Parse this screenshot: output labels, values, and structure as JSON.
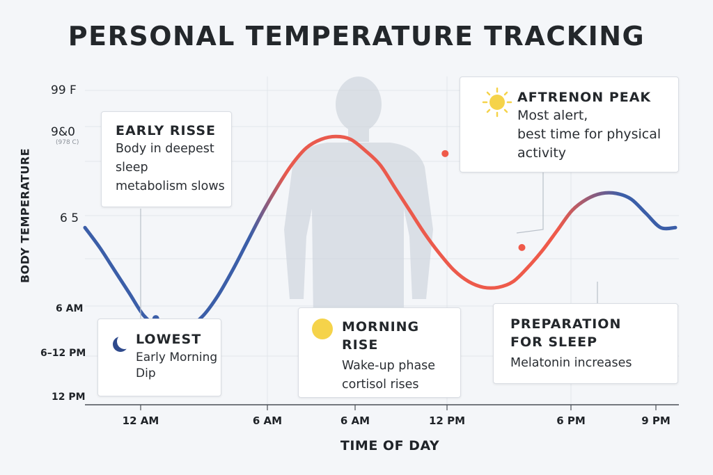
{
  "title": "PERSONAL TEMPERATURE TRACKING",
  "chart_data": {
    "type": "line",
    "title": "PERSONAL TEMPERATURE TRACKING",
    "xlabel": "TIME OF DAY",
    "ylabel": "BODY TEMPERATURE",
    "x_ticks": [
      "12 AM",
      "6 AM",
      "6 AM",
      "12 PM",
      "6 PM",
      "9 PM"
    ],
    "y_ticks": [
      {
        "label": "99 F",
        "sub": ""
      },
      {
        "label": "9&0",
        "sub": "(978 C)"
      },
      {
        "label": "6 5",
        "sub": ""
      },
      {
        "label": "6 AM",
        "sub": ""
      },
      {
        "label": "6–12 PM",
        "sub": ""
      },
      {
        "label": "12 PM",
        "sub": ""
      }
    ],
    "grid": true,
    "series": [
      {
        "x": [
          0,
          0.25,
          0.5,
          0.75,
          1.0,
          1.25,
          1.5,
          1.75,
          2.0,
          2.25,
          2.5,
          2.75,
          3.0,
          3.25,
          3.5,
          3.75,
          4.0,
          4.25,
          4.5,
          4.75,
          5.0,
          5.25,
          5.5,
          5.75,
          6.0,
          6.25,
          6.5,
          6.75,
          7.0,
          7.25,
          7.5,
          7.75,
          8.0,
          8.25,
          8.5,
          8.75,
          9.0,
          9.25,
          9.5,
          9.75,
          10.0
        ],
        "y": [
          0.52,
          0.45,
          0.37,
          0.29,
          0.21,
          0.17,
          0.16,
          0.17,
          0.21,
          0.28,
          0.37,
          0.47,
          0.57,
          0.66,
          0.74,
          0.8,
          0.83,
          0.84,
          0.83,
          0.79,
          0.74,
          0.66,
          0.58,
          0.5,
          0.43,
          0.37,
          0.33,
          0.31,
          0.31,
          0.33,
          0.38,
          0.44,
          0.51,
          0.58,
          0.62,
          0.64,
          0.64,
          0.62,
          0.57,
          0.52,
          0.52
        ]
      }
    ],
    "markers": [
      {
        "x": 1.2,
        "y": 0.2
      },
      {
        "x": 6.1,
        "y": 0.78
      },
      {
        "x": 7.4,
        "y": 0.45
      }
    ],
    "colors": {
      "cool": "#3b5ea8",
      "warm": "#ef5a4a"
    }
  },
  "annotations": [
    {
      "title": "EARLY RISSE",
      "lines": [
        "Body in deepest",
        "sleep",
        "metabolism slows"
      ]
    },
    {
      "title": "LOWEST",
      "lines": [
        "Early Morning",
        "Dip"
      ],
      "icon": "moon-icon"
    },
    {
      "title": "MORNING",
      "title2": "RISE",
      "lines": [
        "Wake-up phase",
        "cortisol rises"
      ],
      "icon": "sun-dot-icon"
    },
    {
      "title": "AFTRENON PEAK",
      "lines": [
        "Most alert,",
        "best time for physical",
        "activity"
      ],
      "icon": "sun-icon"
    },
    {
      "title": "PREPARATION",
      "title2": "FOR SLEEP",
      "lines": [
        "Melatonin increases"
      ]
    }
  ]
}
